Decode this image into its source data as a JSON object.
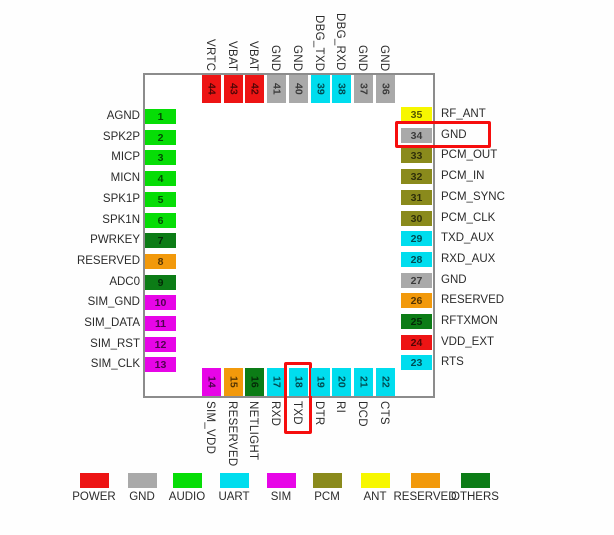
{
  "diagram": {
    "type": "ic-pinout",
    "highlighted_pins": [
      "34",
      "18"
    ],
    "highlight_color": "#f60d0d",
    "categories": {
      "POWER": "#ed1414",
      "GND": "#a9a9a9",
      "AUDIO": "#06dd06",
      "UART": "#00ddee",
      "SIM": "#e705e7",
      "PCM": "#8a8a1c",
      "ANT": "#f7f700",
      "RESERVED": "#f2990b",
      "OTHERS": "#0c7c16"
    },
    "pins": {
      "left": [
        {
          "num": "1",
          "label": "AGND",
          "cat": "AUDIO"
        },
        {
          "num": "2",
          "label": "SPK2P",
          "cat": "AUDIO"
        },
        {
          "num": "3",
          "label": "MICP",
          "cat": "AUDIO"
        },
        {
          "num": "4",
          "label": "MICN",
          "cat": "AUDIO"
        },
        {
          "num": "5",
          "label": "SPK1P",
          "cat": "AUDIO"
        },
        {
          "num": "6",
          "label": "SPK1N",
          "cat": "AUDIO"
        },
        {
          "num": "7",
          "label": "PWRKEY",
          "cat": "OTHERS"
        },
        {
          "num": "8",
          "label": "RESERVED",
          "cat": "RESERVED"
        },
        {
          "num": "9",
          "label": "ADC0",
          "cat": "OTHERS"
        },
        {
          "num": "10",
          "label": "SIM_GND",
          "cat": "SIM"
        },
        {
          "num": "11",
          "label": "SIM_DATA",
          "cat": "SIM"
        },
        {
          "num": "12",
          "label": "SIM_RST",
          "cat": "SIM"
        },
        {
          "num": "13",
          "label": "SIM_CLK",
          "cat": "SIM"
        }
      ],
      "right": [
        {
          "num": "35",
          "label": "RF_ANT",
          "cat": "ANT"
        },
        {
          "num": "34",
          "label": "GND",
          "cat": "GND"
        },
        {
          "num": "33",
          "label": "PCM_OUT",
          "cat": "PCM"
        },
        {
          "num": "32",
          "label": "PCM_IN",
          "cat": "PCM"
        },
        {
          "num": "31",
          "label": "PCM_SYNC",
          "cat": "PCM"
        },
        {
          "num": "30",
          "label": "PCM_CLK",
          "cat": "PCM"
        },
        {
          "num": "29",
          "label": "TXD_AUX",
          "cat": "UART"
        },
        {
          "num": "28",
          "label": "RXD_AUX",
          "cat": "UART"
        },
        {
          "num": "27",
          "label": "GND",
          "cat": "GND"
        },
        {
          "num": "26",
          "label": "RESERVED",
          "cat": "RESERVED"
        },
        {
          "num": "25",
          "label": "RFTXMON",
          "cat": "OTHERS"
        },
        {
          "num": "24",
          "label": "VDD_EXT",
          "cat": "POWER"
        },
        {
          "num": "23",
          "label": "RTS",
          "cat": "UART"
        }
      ],
      "top": [
        {
          "num": "44",
          "label": "VRTC",
          "cat": "POWER"
        },
        {
          "num": "43",
          "label": "VBAT",
          "cat": "POWER"
        },
        {
          "num": "42",
          "label": "VBAT",
          "cat": "POWER"
        },
        {
          "num": "41",
          "label": "GND",
          "cat": "GND"
        },
        {
          "num": "40",
          "label": "GND",
          "cat": "GND"
        },
        {
          "num": "39",
          "label": "DBG_TXD",
          "cat": "UART"
        },
        {
          "num": "38",
          "label": "DBG_RXD",
          "cat": "UART"
        },
        {
          "num": "37",
          "label": "GND",
          "cat": "GND"
        },
        {
          "num": "36",
          "label": "GND",
          "cat": "GND"
        }
      ],
      "bottom": [
        {
          "num": "14",
          "label": "SIM_VDD",
          "cat": "SIM"
        },
        {
          "num": "15",
          "label": "RESERVED",
          "cat": "RESERVED"
        },
        {
          "num": "16",
          "label": "NETLIGHT",
          "cat": "OTHERS"
        },
        {
          "num": "17",
          "label": "RXD",
          "cat": "UART"
        },
        {
          "num": "18",
          "label": "TXD",
          "cat": "UART"
        },
        {
          "num": "19",
          "label": "DTR",
          "cat": "UART"
        },
        {
          "num": "20",
          "label": "RI",
          "cat": "UART"
        },
        {
          "num": "21",
          "label": "DCD",
          "cat": "UART"
        },
        {
          "num": "22",
          "label": "CTS",
          "cat": "UART"
        }
      ]
    },
    "legend": [
      {
        "label": "POWER",
        "cat": "POWER"
      },
      {
        "label": "GND",
        "cat": "GND"
      },
      {
        "label": "AUDIO",
        "cat": "AUDIO"
      },
      {
        "label": "UART",
        "cat": "UART"
      },
      {
        "label": "SIM",
        "cat": "SIM"
      },
      {
        "label": "PCM",
        "cat": "PCM"
      },
      {
        "label": "ANT",
        "cat": "ANT"
      },
      {
        "label": "RESERVED",
        "cat": "RESERVED"
      },
      {
        "label": "OTHERS",
        "cat": "OTHERS"
      }
    ]
  }
}
